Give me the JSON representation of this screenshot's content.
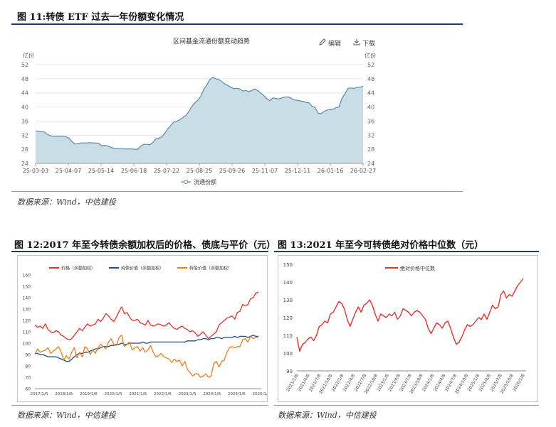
{
  "fig11": {
    "heading": "图 11:转债 ETF 过去一年份额变化情况",
    "source": "数据来源：Wind，中信建投",
    "edit_label": "编辑",
    "download_label": "下载",
    "chart_data": {
      "type": "area",
      "title": "区间基金流通份额变动趋势",
      "unit_left": "亿份",
      "unit_right": "亿份",
      "ylim": [
        24,
        52
      ],
      "yticks": [
        24,
        28,
        32,
        36,
        40,
        44,
        48,
        52
      ],
      "grid": true,
      "legend_position": "bottom",
      "xtick_labels": [
        "25-03-03",
        "25-04-07",
        "25-05-14",
        "25-06-18",
        "25-07-22",
        "25-08-25",
        "25-09-26",
        "25-11-07",
        "25-12-11",
        "26-01-16",
        "26-02-27"
      ],
      "series": [
        {
          "name": "流通份额",
          "color": "#5a88a8",
          "fill": "#c9dde7",
          "values": [
            33.2,
            33.1,
            33.0,
            32.9,
            32.2,
            31.8,
            31.7,
            31.7,
            31.7,
            31.7,
            31.6,
            31.2,
            30.3,
            29.5,
            29.6,
            29.8,
            29.8,
            29.8,
            29.9,
            29.8,
            29.8,
            29.7,
            29.0,
            29.1,
            29.0,
            28.6,
            28.3,
            28.3,
            28.2,
            28.2,
            28.1,
            28.1,
            28.1,
            28.0,
            28.0,
            28.9,
            29.4,
            29.4,
            29.3,
            29.9,
            30.9,
            31.2,
            31.5,
            32.6,
            33.8,
            34.8,
            35.7,
            35.9,
            36.4,
            37.0,
            37.6,
            38.7,
            40.1,
            41.2,
            41.9,
            43.1,
            45.0,
            46.3,
            47.8,
            48.4,
            48.0,
            47.8,
            47.2,
            46.5,
            46.1,
            45.6,
            45.2,
            45.3,
            45.1,
            44.5,
            44.7,
            44.3,
            44.7,
            45.1,
            44.6,
            43.9,
            43.2,
            42.3,
            41.8,
            42.6,
            42.4,
            42.3,
            42.6,
            42.8,
            42.9,
            42.5,
            42.0,
            41.9,
            41.7,
            41.6,
            41.3,
            41.2,
            40.2,
            39.9,
            38.3,
            38.1,
            38.7,
            39.1,
            39.3,
            39.3,
            39.8,
            40.0,
            42.5,
            43.8,
            45.3,
            45.4,
            45.3,
            45.5,
            45.6,
            45.9
          ]
        }
      ]
    }
  },
  "fig12": {
    "heading": "图 12:2017 年至今转债余额加权后的价格、债底与平价（元）",
    "source": "数据来源：Wind，中信建投",
    "chart_data": {
      "type": "line",
      "ylim": [
        60,
        160
      ],
      "yticks": [
        60,
        70,
        80,
        90,
        100,
        110,
        120,
        130,
        140,
        150,
        160
      ],
      "grid": false,
      "legend_position": "top",
      "xtick_labels": [
        "2017/1/6",
        "2018/1/6",
        "2019/1/6",
        "2020/1/6",
        "2021/1/6",
        "2022/1/6",
        "2023/1/6",
        "2024/1/6",
        "2025/1/6",
        "2026/1/6"
      ],
      "series": [
        {
          "name": "价格（余额加权）",
          "color": "#e8312a",
          "values": [
            116,
            114,
            115,
            113,
            117,
            112,
            110,
            109,
            111,
            110,
            107,
            106,
            104,
            103,
            104,
            107,
            110,
            113,
            111,
            114,
            117,
            115,
            116,
            117,
            121,
            119,
            122,
            126,
            124,
            121,
            119,
            123,
            128,
            132,
            126,
            127,
            123,
            120,
            120,
            121,
            118,
            117,
            116,
            120,
            116,
            115,
            116,
            117,
            116,
            115,
            116,
            118,
            115,
            113,
            112,
            114,
            115,
            113,
            112,
            110,
            111,
            109,
            106,
            108,
            110,
            107,
            104,
            106,
            108,
            110,
            116,
            118,
            120,
            122,
            123,
            124,
            121,
            127,
            128,
            134,
            133,
            134,
            139,
            140,
            144,
            145
          ]
        },
        {
          "name": "纯债价值（余额加权）",
          "color": "#1c4f8c",
          "values": [
            91,
            91,
            90,
            90,
            89,
            88,
            88,
            88,
            88,
            87,
            86,
            85,
            84,
            84,
            86,
            88,
            90,
            91,
            91,
            92,
            92,
            93,
            94,
            95,
            95,
            96,
            97,
            97,
            97,
            98,
            98,
            99,
            99,
            100,
            99,
            99,
            100,
            100,
            100,
            100,
            100,
            101,
            100,
            100,
            101,
            101,
            101,
            101,
            101,
            101,
            101,
            101,
            101,
            101,
            101,
            101,
            101,
            101,
            102,
            102,
            102,
            102,
            103,
            103,
            104,
            104,
            103,
            104,
            104,
            105,
            105,
            104,
            105,
            105,
            105,
            105,
            106,
            105,
            106,
            106,
            106,
            105,
            106,
            107,
            106,
            106
          ]
        },
        {
          "name": "转股价值（余额加权）",
          "color": "#ee7d1d",
          "values": [
            90,
            95,
            92,
            93,
            94,
            96,
            91,
            93,
            95,
            97,
            92,
            85,
            89,
            86,
            92,
            96,
            87,
            92,
            88,
            97,
            95,
            90,
            94,
            91,
            96,
            99,
            97,
            95,
            101,
            104,
            99,
            98,
            105,
            107,
            97,
            99,
            101,
            94,
            96,
            97,
            93,
            96,
            92,
            94,
            98,
            92,
            88,
            89,
            91,
            88,
            87,
            86,
            83,
            86,
            84,
            85,
            80,
            84,
            77,
            74,
            71,
            73,
            73,
            70,
            71,
            73,
            70,
            71,
            82,
            84,
            79,
            84,
            85,
            92,
            96,
            97,
            96,
            97,
            97,
            103,
            104,
            101,
            106,
            104,
            105,
            105
          ]
        }
      ]
    }
  },
  "fig13": {
    "heading": "图 13:2021 年至今可转债绝对价格中位数（元）",
    "source": "数据来源：Wind，中信建投",
    "chart_data": {
      "type": "line",
      "ylim": [
        90,
        150
      ],
      "yticks": [
        90,
        100,
        110,
        120,
        130,
        140,
        150
      ],
      "grid": false,
      "legend_position": "top",
      "xtick_labels": [
        "2021/1/8",
        "2021/4/8",
        "2021/7/8",
        "2021/10/8",
        "2022/1/8",
        "2022/4/8",
        "2022/7/8",
        "2022/10/8",
        "2023/1/8",
        "2023/4/8",
        "2023/7/8",
        "2023/10/8",
        "2024/1/8",
        "2024/4/8",
        "2024/7/8",
        "2024/10/8",
        "2025/1/8",
        "2025/4/8",
        "2025/7/8",
        "2025/10/8",
        "2026/1/8"
      ],
      "series": [
        {
          "name": "绝对价格中位数",
          "color": "#e8312a",
          "values": [
            109,
            101,
            105,
            106,
            108,
            109,
            107,
            110,
            115,
            116,
            118,
            117,
            122,
            123,
            126,
            129,
            128,
            125,
            119,
            115,
            119,
            123,
            126,
            123,
            127,
            128,
            130,
            127,
            122,
            118,
            122,
            121,
            120,
            122,
            121,
            123,
            119,
            121,
            125,
            124,
            123,
            121,
            123,
            124,
            123,
            121,
            119,
            114,
            111,
            114,
            117,
            116,
            114,
            117,
            118,
            114,
            109,
            105,
            106,
            109,
            113,
            116,
            115,
            116,
            118,
            120,
            119,
            122,
            119,
            123,
            127,
            125,
            126,
            133,
            135,
            131,
            133,
            132,
            135,
            138,
            140,
            142
          ]
        }
      ]
    }
  }
}
